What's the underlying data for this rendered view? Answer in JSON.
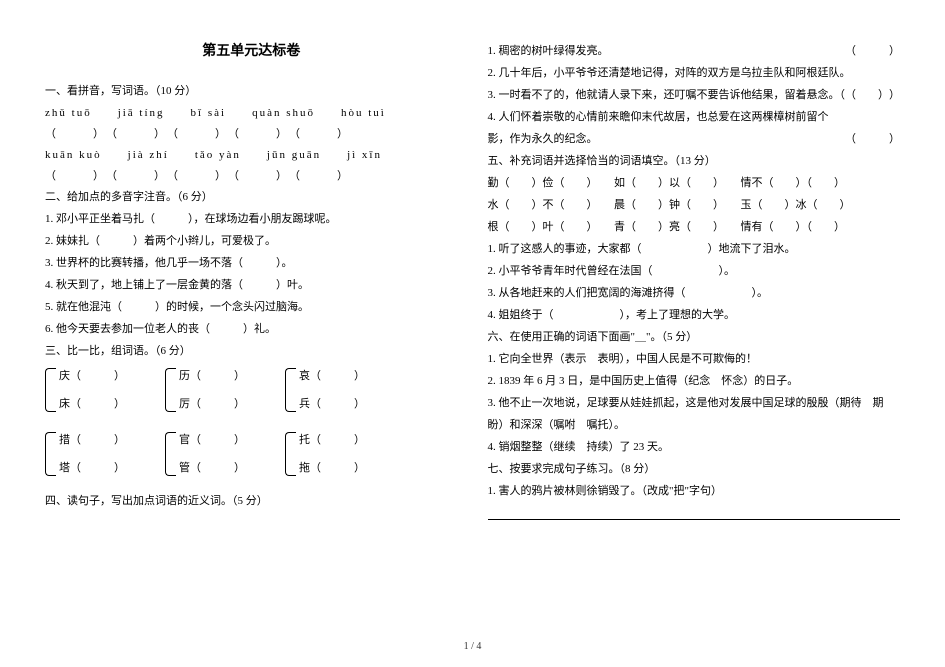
{
  "title": "第五单元达标卷",
  "left": {
    "sec1_head": "一、看拼音，写词语。（10 分）",
    "sec1_py1": "zhǔ tuō　　jiā tíng　　bǐ sài　　quàn shuō　　hòu tuì",
    "sec1_blank1": "（　　　）　（　　　）　（　　　）　（　　　）　（　　　）",
    "sec1_py2": "kuān kuò　　jià zhí　　tǎo yàn　　jūn guān　　jì xīn",
    "sec1_blank2": "（　　　）　（　　　）　（　　　）　（　　　）　（　　　）",
    "sec2_head": "二、给加点的多音字注音。（6 分）",
    "sec2_q1": "1. 邓小平正坐着马扎（　　　），在球场边看小朋友踢球呢。",
    "sec2_q2": "2. 妹妹扎（　　　）着两个小辫儿，可爱极了。",
    "sec2_q3": "3. 世界杯的比赛转播，他几乎一场不落（　　　）。",
    "sec2_q4": "4. 秋天到了，地上铺上了一层金黄的落（　　　）叶。",
    "sec2_q5": "5. 就在他混沌（　　　）的时候，一个念头闪过脑海。",
    "sec2_q6": "6. 他今天要去参加一位老人的丧（　　　）礼。",
    "sec3_head": "三、比一比，组词语。（6 分）",
    "brA_top": "庆（　　　）",
    "brA_bot": "床（　　　）",
    "brB_top": "历（　　　）",
    "brB_bot": "厉（　　　）",
    "brC_top": "哀（　　　）",
    "brC_bot": "兵（　　　）",
    "brD_top": "措（　　　）",
    "brD_bot": "塔（　　　）",
    "brE_top": "官（　　　）",
    "brE_bot": "管（　　　）",
    "brF_top": "托（　　　）",
    "brF_bot": "拖（　　　）",
    "sec4_head": "四、读句子，写出加点词语的近义词。（5 分）"
  },
  "right": {
    "sec4_q1": "1. 稠密的树叶绿得发亮。",
    "sec4_q2a": "2. 几十年后，小平爷爷还清楚地记得，对阵的双方是乌拉圭队和阿根廷队。",
    "sec4_q3": "3. 一时看不了的，他就请人录下来，还叮嘱不要告诉他结果，留着悬念。（　　　）",
    "sec4_q4a": "4. 人们怀着崇敬的心情前来瞻仰末代故居，也总爱在这两棵樟树前留个",
    "sec4_q4b": "影，作为永久的纪念。",
    "sec5_head": "五、补充词语并选择恰当的词语填空。（13 分）",
    "sec5_r1": "勤（　　）俭（　　）　　如（　　）以（　　）　　情不（　　）（　　）",
    "sec5_r2": "水（　　）不（　　）　　晨（　　）钟（　　）　　玉（　　）冰（　　）",
    "sec5_r3": "根（　　）叶（　　）　　青（　　）亮（　　）　　情有（　　）（　　）",
    "sec5_q1": "1. 听了这感人的事迹，大家都（　　　　　　）地流下了泪水。",
    "sec5_q2": "2. 小平爷爷青年时代曾经在法国（　　　　　　）。",
    "sec5_q3": "3. 从各地赶来的人们把宽阔的海滩挤得（　　　　　　）。",
    "sec5_q4": "4. 姐姐终于（　　　　　　），考上了理想的大学。",
    "sec6_head": "六、在使用正确的词语下面画\"＿\"。（5 分）",
    "sec6_q1": "1. 它向全世界（表示　表明），中国人民是不可欺侮的！",
    "sec6_q2": "2. 1839 年 6 月 3 日，是中国历史上值得（纪念　怀念）的日子。",
    "sec6_q3a": "3. 他不止一次地说，足球要从娃娃抓起，这是他对发展中国足球的殷殷（期待　期",
    "sec6_q3b": "盼）和深深（嘱咐　嘱托）。",
    "sec6_q4": "4. 销烟整整（继续　持续）了 23 天。",
    "sec7_head": "七、按要求完成句子练习。（8 分）",
    "sec7_q1": "1. 害人的鸦片被林则徐销毁了。（改成\"把\"字句）",
    "paren_end": "（　　　）"
  },
  "pageno": "1 / 4"
}
